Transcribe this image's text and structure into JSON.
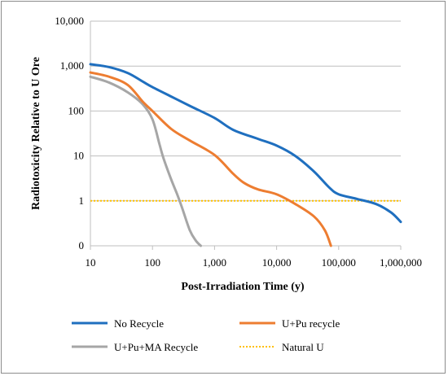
{
  "chart_data": {
    "type": "line",
    "title": "",
    "xlabel": "Post-Irradiation Time (y)",
    "ylabel": "Radiotoxicity Relative to U Ore",
    "x_scale": "log",
    "y_scale": "log",
    "xlim": [
      10,
      1000000
    ],
    "ylim": [
      0.1,
      10000
    ],
    "x_ticks": [
      10,
      100,
      1000,
      10000,
      100000,
      1000000
    ],
    "x_tick_labels": [
      "10",
      "100",
      "1,000",
      "10,000",
      "100,000",
      "1,000,000"
    ],
    "y_ticks": [
      0.1,
      1,
      10,
      100,
      1000,
      10000
    ],
    "y_tick_labels": [
      "0",
      "1",
      "10",
      "100",
      "1,000",
      "10,000"
    ],
    "grid": "horizontal",
    "legend_position": "bottom",
    "series": [
      {
        "name": "No Recycle",
        "color": "#1f6fbf",
        "dash": "solid",
        "points": [
          [
            10,
            1100
          ],
          [
            20,
            950
          ],
          [
            40,
            700
          ],
          [
            70,
            450
          ],
          [
            100,
            340
          ],
          [
            200,
            210
          ],
          [
            400,
            130
          ],
          [
            1000,
            70
          ],
          [
            2000,
            38
          ],
          [
            5000,
            24
          ],
          [
            10000,
            17
          ],
          [
            20000,
            10
          ],
          [
            40000,
            4.5
          ],
          [
            70000,
            2.0
          ],
          [
            100000,
            1.4
          ],
          [
            200000,
            1.1
          ],
          [
            400000,
            0.85
          ],
          [
            700000,
            0.55
          ],
          [
            1000000,
            0.34
          ]
        ]
      },
      {
        "name": "U+Pu recycle",
        "color": "#ed7d31",
        "dash": "solid",
        "points": [
          [
            10,
            720
          ],
          [
            20,
            580
          ],
          [
            40,
            380
          ],
          [
            70,
            160
          ],
          [
            100,
            100
          ],
          [
            200,
            40
          ],
          [
            400,
            22
          ],
          [
            1000,
            10.5
          ],
          [
            2000,
            4.0
          ],
          [
            3000,
            2.5
          ],
          [
            5000,
            1.8
          ],
          [
            10000,
            1.4
          ],
          [
            20000,
            0.85
          ],
          [
            40000,
            0.45
          ],
          [
            60000,
            0.22
          ],
          [
            75000,
            0.1
          ]
        ]
      },
      {
        "name": "U+Pu+MA Recycle",
        "color": "#a6a6a6",
        "dash": "solid",
        "points": [
          [
            10,
            580
          ],
          [
            20,
            430
          ],
          [
            40,
            260
          ],
          [
            70,
            140
          ],
          [
            100,
            65
          ],
          [
            130,
            18
          ],
          [
            150,
            9
          ],
          [
            200,
            3
          ],
          [
            250,
            1.4
          ],
          [
            300,
            0.7
          ],
          [
            400,
            0.22
          ],
          [
            500,
            0.13
          ],
          [
            600,
            0.1
          ]
        ]
      },
      {
        "name": "Natural U",
        "color": "#ffc000",
        "dash": "dotted",
        "points": [
          [
            10,
            1
          ],
          [
            1000000,
            1
          ]
        ]
      }
    ]
  }
}
